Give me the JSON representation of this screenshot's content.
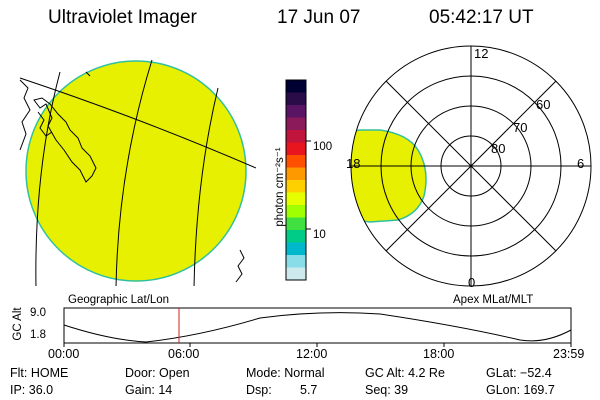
{
  "header": {
    "title": "Ultraviolet Imager",
    "date": "17 Jun 07",
    "time": "05:42:17 UT"
  },
  "geo_panel": {
    "label": "Geographic Lat/Lon"
  },
  "polar_panel": {
    "label": "Apex MLat/MLT",
    "mlt_labels": {
      "top": "12",
      "bottom": "0",
      "left": "18",
      "right": "6"
    },
    "lat_labels": [
      "60",
      "70",
      "80"
    ]
  },
  "colorbar": {
    "unit_label": "photon cm⁻²s⁻¹",
    "tick_labels": [
      "100",
      "10"
    ],
    "colors": [
      "#000033",
      "#2a0c48",
      "#5a1464",
      "#8a1a5a",
      "#c0143c",
      "#e8141e",
      "#ff5000",
      "#ff9900",
      "#ffd000",
      "#e6ff00",
      "#a0ff00",
      "#40e040",
      "#00cc88",
      "#00b8cc",
      "#88dde8",
      "#cde9ee"
    ]
  },
  "altitude_plot": {
    "ylabel": "GC Alt",
    "y_ticks": [
      "9.0",
      "1.8"
    ],
    "x_ticks": [
      "00:00",
      "06:00",
      "12:00",
      "18:00",
      "23:59"
    ],
    "current_time_marker_color": "#cc2222"
  },
  "status": {
    "flt": "Flt: HOME",
    "ip": "IP: 36.0",
    "door": "Door: Open",
    "gain": "Gain: 14",
    "mode": "Mode: Normal",
    "dsp_label": "Dsp:",
    "dsp_value": "5.7",
    "gc_alt": "GC Alt: 4.2 Re",
    "seq": "Seq: 39",
    "glat": "GLat: −52.4",
    "glon": "GLon: 169.7"
  },
  "image_fill_color": "#e6f000",
  "image_edge_color": "#30c0a0"
}
